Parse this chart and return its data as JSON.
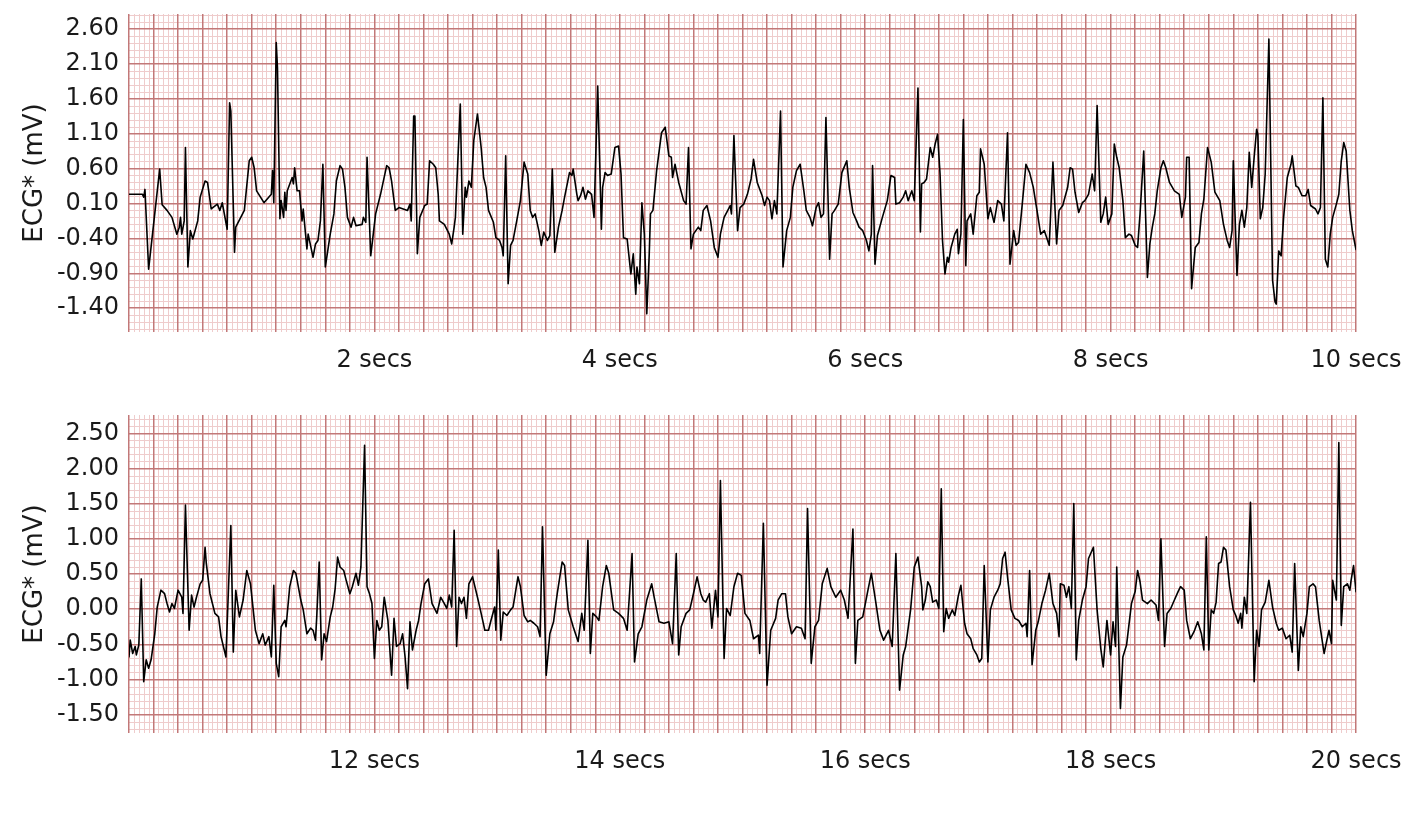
{
  "chart_data": [
    {
      "type": "line",
      "ylabel": "ECG* (mV)",
      "color": "#000000",
      "grid": true,
      "xlim": [
        0,
        10
      ],
      "ylim": [
        -1.74,
        2.81
      ],
      "xticks": [
        {
          "value": 0,
          "label": null
        },
        {
          "value": 0.2,
          "label": null
        },
        {
          "value": 0.4,
          "label": null
        },
        {
          "value": 0.6,
          "label": null
        },
        {
          "value": 0.8,
          "label": null
        },
        {
          "value": 1,
          "label": null
        },
        {
          "value": 1.2,
          "label": null
        },
        {
          "value": 1.4,
          "label": null
        },
        {
          "value": 1.6,
          "label": null
        },
        {
          "value": 1.8,
          "label": null
        },
        {
          "value": 2,
          "label": "2 secs"
        },
        {
          "value": 2.2,
          "label": null
        },
        {
          "value": 2.4,
          "label": null
        },
        {
          "value": 2.6,
          "label": null
        },
        {
          "value": 2.8,
          "label": null
        },
        {
          "value": 3,
          "label": null
        },
        {
          "value": 3.2,
          "label": null
        },
        {
          "value": 3.4,
          "label": null
        },
        {
          "value": 3.6,
          "label": null
        },
        {
          "value": 3.8,
          "label": null
        },
        {
          "value": 4,
          "label": "4 secs"
        },
        {
          "value": 4.2,
          "label": null
        },
        {
          "value": 4.4,
          "label": null
        },
        {
          "value": 4.6,
          "label": null
        },
        {
          "value": 4.8,
          "label": null
        },
        {
          "value": 5,
          "label": null
        },
        {
          "value": 5.2,
          "label": null
        },
        {
          "value": 5.4,
          "label": null
        },
        {
          "value": 5.6,
          "label": null
        },
        {
          "value": 5.8,
          "label": null
        },
        {
          "value": 6,
          "label": "6 secs"
        },
        {
          "value": 6.2,
          "label": null
        },
        {
          "value": 6.4,
          "label": null
        },
        {
          "value": 6.6,
          "label": null
        },
        {
          "value": 6.8,
          "label": null
        },
        {
          "value": 7,
          "label": null
        },
        {
          "value": 7.2,
          "label": null
        },
        {
          "value": 7.4,
          "label": null
        },
        {
          "value": 7.6,
          "label": null
        },
        {
          "value": 7.8,
          "label": null
        },
        {
          "value": 8,
          "label": "8 secs"
        },
        {
          "value": 8.2,
          "label": null
        },
        {
          "value": 8.4,
          "label": null
        },
        {
          "value": 8.6,
          "label": null
        },
        {
          "value": 8.8,
          "label": null
        },
        {
          "value": 9,
          "label": null
        },
        {
          "value": 9.2,
          "label": null
        },
        {
          "value": 9.4,
          "label": null
        },
        {
          "value": 9.6,
          "label": null
        },
        {
          "value": 9.8,
          "label": null
        },
        {
          "value": 10,
          "label": "10 secs"
        }
      ],
      "yticks": [
        {
          "value": 2.6,
          "label": "2.60"
        },
        {
          "value": 2.1,
          "label": "2.10"
        },
        {
          "value": 1.6,
          "label": "1.60"
        },
        {
          "value": 1.1,
          "label": "1.10"
        },
        {
          "value": 0.6,
          "label": "0.60"
        },
        {
          "value": 0.1,
          "label": "0.10"
        },
        {
          "value": -0.4,
          "label": "-0.40"
        },
        {
          "value": -0.9,
          "label": "-0.90"
        },
        {
          "value": -1.4,
          "label": "-1.40"
        }
      ],
      "x": [
        0,
        0.11,
        0.12,
        0.13,
        0.16,
        0.25,
        0.27,
        0.31,
        0.35,
        0.39,
        0.41,
        0.42,
        0.43,
        0.45,
        0.46,
        0.48,
        0.5,
        0.52,
        0.56,
        0.58,
        0.62,
        0.64,
        0.67,
        0.72,
        0.74,
        0.76,
        0.8,
        0.82,
        0.83,
        0.86,
        0.87,
        0.94,
        0.98,
        1,
        1.02,
        1.04,
        1.1,
        1.16,
        1.17,
        1.18,
        1.2,
        1.21,
        1.23,
        1.24,
        1.26,
        1.27,
        1.28,
        1.29,
        1.33,
        1.34,
        1.35,
        1.37,
        1.39,
        1.41,
        1.42,
        1.45,
        1.46,
        1.5,
        1.52,
        1.54,
        1.56,
        1.58,
        1.6,
        1.64,
        1.67,
        1.69,
        1.72,
        1.74,
        1.76,
        1.78,
        1.81,
        1.83,
        1.85,
        1.9,
        1.91,
        1.93,
        1.94,
        1.97,
        2.01,
        2.05,
        2.1,
        2.12,
        2.14,
        2.17,
        2.2,
        2.27,
        2.29,
        2.3,
        2.32,
        2.33,
        2.35,
        2.37,
        2.41,
        2.43,
        2.45,
        2.48,
        2.5,
        2.52,
        2.53,
        2.57,
        2.61,
        2.63,
        2.65,
        2.66,
        2.7,
        2.72,
        2.74,
        2.75,
        2.77,
        2.79,
        2.81,
        2.84,
        2.87,
        2.89,
        2.91,
        2.93,
        2.97,
        2.99,
        3.02,
        3.04,
        3.05,
        3.07,
        3.09,
        3.11,
        3.13,
        3.16,
        3.19,
        3.22,
        3.25,
        3.27,
        3.29,
        3.31,
        3.34,
        3.36,
        3.38,
        3.41,
        3.43,
        3.45,
        3.47,
        3.5,
        3.53,
        3.55,
        3.59,
        3.61,
        3.62,
        3.65,
        3.66,
        3.68,
        3.7,
        3.72,
        3.74,
        3.77,
        3.79,
        3.82,
        3.85,
        3.86,
        3.88,
        3.9,
        3.93,
        3.96,
        3.99,
        4.01,
        4.03,
        4.06,
        4.09,
        4.11,
        4.13,
        4.14,
        4.16,
        4.18,
        4.2,
        4.22,
        4.24,
        4.25,
        4.27,
        4.3,
        4.34,
        4.37,
        4.4,
        4.42,
        4.43,
        4.45,
        4.48,
        4.52,
        4.54,
        4.56,
        4.58,
        4.6,
        4.64,
        4.66,
        4.68,
        4.71,
        4.74,
        4.77,
        4.8,
        4.82,
        4.85,
        4.88,
        4.9,
        4.91,
        4.93,
        4.96,
        4.98,
        5.01,
        5.04,
        5.07,
        5.09,
        5.12,
        5.16,
        5.18,
        5.2,
        5.22,
        5.24,
        5.26,
        5.28,
        5.31,
        5.33,
        5.36,
        5.39,
        5.41,
        5.44,
        5.47,
        5.5,
        5.52,
        5.55,
        5.57,
        5.6,
        5.62,
        5.64,
        5.66,
        5.68,
        5.71,
        5.73,
        5.75,
        5.78,
        5.81,
        5.85,
        5.87,
        5.9,
        5.93,
        5.95,
        5.98,
        6.01,
        6.03,
        6.05,
        6.06,
        6.08,
        6.1,
        6.14,
        6.18,
        6.21,
        6.24,
        6.25,
        6.28,
        6.31,
        6.33,
        6.35,
        6.38,
        6.4,
        6.43,
        6.45,
        6.46,
        6.48,
        6.5,
        6.53,
        6.55,
        6.57,
        6.59,
        6.61,
        6.63,
        6.65,
        6.67,
        6.68,
        6.7,
        6.73,
        6.75,
        6.76,
        6.78,
        6.8,
        6.82,
        6.83,
        6.86,
        6.88,
        6.91,
        6.93,
        6.94,
        6.97,
        7,
        7.02,
        7.05,
        7.08,
        7.11,
        7.13,
        7.16,
        7.18,
        7.21,
        7.23,
        7.25,
        7.28,
        7.31,
        7.34,
        7.37,
        7.4,
        7.43,
        7.46,
        7.5,
        7.53,
        7.56,
        7.58,
        7.61,
        7.65,
        7.67,
        7.69,
        7.71,
        7.74,
        7.77,
        7.79,
        7.82,
        7.85,
        7.87,
        7.89,
        7.92,
        7.94,
        7.96,
        7.98,
        8.01,
        8.03,
        8.05,
        8.07,
        8.1,
        8.12,
        8.15,
        8.17,
        8.2,
        8.22,
        8.24,
        8.27,
        8.3,
        8.32,
        8.34,
        8.36,
        8.38,
        8.41,
        8.43,
        8.45,
        8.48,
        8.52,
        8.56,
        8.58,
        8.61,
        8.62,
        8.64,
        8.66,
        8.69,
        8.72,
        8.74,
        8.76,
        8.79,
        8.82,
        8.85,
        8.89,
        8.92,
        8.95,
        8.97,
        8.99,
        9,
        9.03,
        9.05,
        9.07,
        9.09,
        9.11,
        9.13,
        9.15,
        9.17,
        9.19,
        9.2,
        9.22,
        9.24,
        9.26,
        9.29,
        9.32,
        9.34,
        9.35,
        9.37,
        9.39,
        9.41,
        9.44,
        9.47,
        9.48,
        9.51,
        9.53,
        9.56,
        9.59,
        9.61,
        9.63,
        9.67,
        9.69,
        9.71,
        9.73,
        9.75,
        9.77,
        9.79,
        9.81,
        9.84,
        9.86,
        9.88,
        9.9,
        9.92,
        9.95,
        9.97,
        10
      ],
      "values": [
        0.23,
        0.23,
        0.19,
        0.3,
        -0.84,
        0.59,
        0.08,
        0.0,
        -0.1,
        -0.34,
        -0.24,
        -0.1,
        -0.34,
        -0.15,
        0.9,
        -0.81,
        -0.29,
        -0.41,
        -0.15,
        0.19,
        0.42,
        0.4,
        0.02,
        0.09,
        0.0,
        0.11,
        -0.27,
        1.54,
        1.42,
        -0.6,
        -0.24,
        0.0,
        0.71,
        0.76,
        0.61,
        0.28,
        0.11,
        0.23,
        0.57,
        0.11,
        2.4,
        2.04,
        -0.12,
        0.14,
        -0.1,
        0.26,
        0.0,
        0.28,
        0.47,
        0.38,
        0.61,
        0.28,
        0.28,
        -0.15,
        0.02,
        -0.55,
        -0.34,
        -0.67,
        -0.48,
        -0.43,
        -0.15,
        0.66,
        -0.81,
        -0.34,
        -0.05,
        0.42,
        0.64,
        0.59,
        0.33,
        -0.1,
        -0.24,
        -0.1,
        -0.22,
        -0.2,
        -0.1,
        -0.17,
        0.76,
        -0.65,
        -0.05,
        0.23,
        0.64,
        0.61,
        0.42,
        0.0,
        0.04,
        0.0,
        0.09,
        -0.15,
        1.35,
        1.35,
        -0.62,
        -0.1,
        0.07,
        0.09,
        0.71,
        0.66,
        0.61,
        0.23,
        -0.15,
        -0.2,
        -0.34,
        -0.48,
        -0.24,
        -0.1,
        1.52,
        -0.34,
        0.33,
        0.19,
        0.42,
        0.33,
        1.0,
        1.38,
        0.9,
        0.47,
        0.33,
        0.0,
        -0.17,
        -0.39,
        -0.43,
        -0.53,
        -0.65,
        0.78,
        -1.05,
        -0.5,
        -0.43,
        -0.15,
        0.14,
        0.69,
        0.52,
        0.0,
        -0.1,
        -0.05,
        -0.29,
        -0.5,
        -0.31,
        -0.43,
        -0.36,
        0.59,
        -0.6,
        -0.24,
        0.0,
        0.19,
        0.54,
        0.5,
        0.59,
        0.23,
        0.14,
        0.21,
        0.33,
        0.16,
        0.28,
        0.23,
        -0.1,
        1.78,
        -0.27,
        0.33,
        0.54,
        0.5,
        0.52,
        0.9,
        0.92,
        0.52,
        -0.39,
        -0.41,
        -0.91,
        -0.62,
        -1.2,
        -0.81,
        -1.05,
        0.11,
        -0.34,
        -1.48,
        -0.62,
        -0.05,
        0.0,
        0.57,
        1.11,
        1.19,
        0.78,
        0.76,
        0.47,
        0.66,
        0.4,
        0.14,
        0.09,
        0.9,
        -0.55,
        -0.34,
        -0.24,
        -0.29,
        0.0,
        0.07,
        -0.15,
        -0.53,
        -0.67,
        -0.34,
        -0.1,
        0.0,
        0.07,
        -0.05,
        1.07,
        -0.29,
        0.04,
        0.09,
        0.23,
        0.45,
        0.73,
        0.4,
        0.21,
        0.07,
        0.19,
        0.14,
        -0.12,
        0.14,
        -0.05,
        1.42,
        -0.81,
        -0.29,
        -0.1,
        0.33,
        0.57,
        0.66,
        0.28,
        0.0,
        -0.1,
        -0.22,
        0.04,
        0.11,
        -0.1,
        -0.05,
        1.33,
        -0.7,
        -0.05,
        0.0,
        0.09,
        0.54,
        0.71,
        0.33,
        -0.03,
        -0.15,
        -0.24,
        -0.29,
        -0.43,
        -0.58,
        -0.34,
        0.64,
        -0.77,
        -0.36,
        -0.1,
        0.14,
        0.5,
        0.47,
        0.09,
        0.11,
        0.19,
        0.28,
        0.14,
        0.28,
        0.14,
        1.75,
        -0.31,
        0.38,
        0.4,
        0.45,
        0.9,
        0.76,
        0.95,
        1.09,
        0.52,
        -0.43,
        -0.91,
        -0.67,
        -0.74,
        -0.53,
        -0.34,
        -0.27,
        -0.62,
        -0.34,
        1.3,
        -0.79,
        -0.15,
        -0.05,
        -0.34,
        0.21,
        0.26,
        0.88,
        0.66,
        -0.12,
        0.04,
        -0.17,
        0.14,
        0.09,
        -0.15,
        1.11,
        -0.77,
        -0.29,
        -0.5,
        -0.46,
        0.09,
        0.66,
        0.54,
        0.33,
        0.0,
        -0.34,
        -0.29,
        -0.5,
        0.69,
        -0.48,
        0.0,
        0.07,
        0.33,
        0.61,
        0.59,
        0.26,
        -0.03,
        0.11,
        0.14,
        0.23,
        0.52,
        0.28,
        1.5,
        -0.17,
        -0.05,
        0.19,
        -0.2,
        -0.05,
        0.95,
        0.76,
        0.61,
        0.14,
        -0.39,
        -0.34,
        -0.36,
        -0.5,
        -0.53,
        -0.05,
        0.85,
        -0.96,
        -0.48,
        -0.24,
        -0.05,
        0.28,
        0.61,
        0.71,
        0.61,
        0.4,
        0.28,
        0.23,
        -0.1,
        0.19,
        0.76,
        0.76,
        -1.12,
        -0.53,
        -0.46,
        -0.05,
        0.16,
        0.9,
        0.69,
        0.26,
        0.14,
        -0.2,
        -0.43,
        -0.53,
        -0.29,
        0.71,
        -0.93,
        -0.2,
        0.0,
        -0.24,
        0.04,
        0.83,
        0.33,
        0.76,
        1.16,
        1.09,
        -0.12,
        0.04,
        0.52,
        2.45,
        -1.0,
        -1.31,
        -1.34,
        -0.58,
        -0.65,
        -0.1,
        0.47,
        0.66,
        0.78,
        0.35,
        0.33,
        0.21,
        0.21,
        0.3,
        0.07,
        0.02,
        -0.05,
        0.04,
        1.61,
        -0.7,
        -0.81,
        -0.34,
        -0.1,
        0.09,
        0.23,
        0.71,
        0.97,
        0.85,
        0.0,
        -0.29,
        -0.56
      ]
    },
    {
      "type": "line",
      "ylabel": "ECG* (mV)",
      "color": "#000000",
      "grid": true,
      "xlim": [
        10,
        20
      ],
      "ylim": [
        -1.76,
        2.76
      ],
      "xticks": [
        {
          "value": 10,
          "label": null
        },
        {
          "value": 10.2,
          "label": null
        },
        {
          "value": 10.4,
          "label": null
        },
        {
          "value": 10.6,
          "label": null
        },
        {
          "value": 10.8,
          "label": null
        },
        {
          "value": 11,
          "label": null
        },
        {
          "value": 11.2,
          "label": null
        },
        {
          "value": 11.4,
          "label": null
        },
        {
          "value": 11.6,
          "label": null
        },
        {
          "value": 11.8,
          "label": null
        },
        {
          "value": 12,
          "label": "12 secs"
        },
        {
          "value": 12.2,
          "label": null
        },
        {
          "value": 12.4,
          "label": null
        },
        {
          "value": 12.6,
          "label": null
        },
        {
          "value": 12.8,
          "label": null
        },
        {
          "value": 13,
          "label": null
        },
        {
          "value": 13.2,
          "label": null
        },
        {
          "value": 13.4,
          "label": null
        },
        {
          "value": 13.6,
          "label": null
        },
        {
          "value": 13.8,
          "label": null
        },
        {
          "value": 14,
          "label": "14 secs"
        },
        {
          "value": 14.2,
          "label": null
        },
        {
          "value": 14.4,
          "label": null
        },
        {
          "value": 14.6,
          "label": null
        },
        {
          "value": 14.8,
          "label": null
        },
        {
          "value": 15,
          "label": null
        },
        {
          "value": 15.2,
          "label": null
        },
        {
          "value": 15.4,
          "label": null
        },
        {
          "value": 15.6,
          "label": null
        },
        {
          "value": 15.8,
          "label": null
        },
        {
          "value": 16,
          "label": "16 secs"
        },
        {
          "value": 16.2,
          "label": null
        },
        {
          "value": 16.4,
          "label": null
        },
        {
          "value": 16.6,
          "label": null
        },
        {
          "value": 16.8,
          "label": null
        },
        {
          "value": 17,
          "label": null
        },
        {
          "value": 17.2,
          "label": null
        },
        {
          "value": 17.4,
          "label": null
        },
        {
          "value": 17.6,
          "label": null
        },
        {
          "value": 17.8,
          "label": null
        },
        {
          "value": 18,
          "label": "18 secs"
        },
        {
          "value": 18.2,
          "label": null
        },
        {
          "value": 18.4,
          "label": null
        },
        {
          "value": 18.6,
          "label": null
        },
        {
          "value": 18.8,
          "label": null
        },
        {
          "value": 19,
          "label": null
        },
        {
          "value": 19.2,
          "label": null
        },
        {
          "value": 19.4,
          "label": null
        },
        {
          "value": 19.6,
          "label": null
        },
        {
          "value": 19.8,
          "label": null
        },
        {
          "value": 20,
          "label": "20 secs"
        }
      ],
      "yticks": [
        {
          "value": 2.5,
          "label": "2.50"
        },
        {
          "value": 2,
          "label": "2.00"
        },
        {
          "value": 1.5,
          "label": "1.50"
        },
        {
          "value": 1,
          "label": "1.00"
        },
        {
          "value": 0.5,
          "label": "0.50"
        },
        {
          "value": 0,
          "label": "0.00"
        },
        {
          "value": -0.5,
          "label": "-0.50"
        },
        {
          "value": -1,
          "label": "-1.00"
        },
        {
          "value": -1.5,
          "label": "-1.50"
        }
      ],
      "x": [
        10,
        10.01,
        10.03,
        10.05,
        10.06,
        10.08,
        10.1,
        10.12,
        10.14,
        10.16,
        10.18,
        10.21,
        10.23,
        10.26,
        10.29,
        10.31,
        10.33,
        10.35,
        10.37,
        10.4,
        10.43,
        10.44,
        10.46,
        10.49,
        10.51,
        10.53,
        10.55,
        10.58,
        10.6,
        10.62,
        10.63,
        10.66,
        10.7,
        10.73,
        10.75,
        10.79,
        10.83,
        10.85,
        10.87,
        10.9,
        10.93,
        10.96,
        10.99,
        11.03,
        11.06,
        11.09,
        11.11,
        11.14,
        11.16,
        11.18,
        11.2,
        11.22,
        11.24,
        11.27,
        11.28,
        11.31,
        11.34,
        11.36,
        11.4,
        11.42,
        11.45,
        11.48,
        11.5,
        11.52,
        11.53,
        11.55,
        11.57,
        11.59,
        11.61,
        11.64,
        11.66,
        11.68,
        11.7,
        11.72,
        11.75,
        11.77,
        11.8,
        11.82,
        11.85,
        11.87,
        11.89,
        11.92,
        11.94,
        11.96,
        11.98,
        12,
        12.02,
        12.04,
        12.06,
        12.08,
        12.11,
        12.14,
        12.16,
        12.18,
        12.21,
        12.23,
        12.25,
        12.27,
        12.29,
        12.31,
        12.34,
        12.36,
        12.38,
        12.41,
        12.44,
        12.47,
        12.51,
        12.54,
        12.57,
        12.59,
        12.61,
        12.63,
        12.65,
        12.67,
        12.69,
        12.71,
        12.73,
        12.75,
        12.77,
        12.8,
        12.84,
        12.87,
        12.9,
        12.93,
        12.95,
        12.98,
        12.99,
        13.01,
        13.03,
        13.05,
        13.08,
        13.11,
        13.13,
        13.17,
        13.19,
        13.22,
        13.25,
        13.27,
        13.3,
        13.33,
        13.35,
        13.37,
        13.4,
        13.43,
        13.46,
        13.49,
        13.53,
        13.55,
        13.58,
        13.62,
        13.66,
        13.69,
        13.71,
        13.74,
        13.76,
        13.78,
        13.81,
        13.83,
        13.86,
        13.89,
        13.91,
        13.95,
        13.99,
        14.03,
        14.06,
        14.1,
        14.12,
        14.15,
        14.18,
        14.22,
        14.26,
        14.28,
        14.32,
        14.36,
        14.4,
        14.43,
        14.46,
        14.48,
        14.5,
        14.54,
        14.57,
        14.6,
        14.63,
        14.66,
        14.68,
        14.7,
        14.73,
        14.75,
        14.78,
        14.8,
        14.82,
        14.85,
        14.87,
        14.9,
        14.93,
        14.96,
        14.99,
        15.02,
        15.06,
        15.09,
        15.13,
        15.14,
        15.17,
        15.2,
        15.23,
        15.27,
        15.29,
        15.32,
        15.35,
        15.37,
        15.4,
        15.44,
        15.48,
        15.51,
        15.53,
        15.56,
        15.59,
        15.62,
        15.65,
        15.69,
        15.72,
        15.76,
        15.8,
        15.83,
        15.86,
        15.9,
        15.92,
        15.94,
        15.98,
        16.02,
        16.05,
        16.08,
        16.12,
        16.15,
        16.19,
        16.22,
        16.25,
        16.28,
        16.31,
        16.33,
        16.37,
        16.4,
        16.43,
        16.46,
        16.47,
        16.49,
        16.51,
        16.53,
        16.55,
        16.58,
        16.6,
        16.62,
        16.64,
        16.66,
        16.68,
        16.71,
        16.73,
        16.76,
        16.78,
        16.81,
        16.83,
        16.86,
        16.88,
        16.91,
        16.93,
        16.95,
        16.97,
        17,
        17.02,
        17.05,
        17.08,
        17.1,
        17.12,
        17.14,
        17.16,
        17.19,
        17.22,
        17.25,
        17.28,
        17.31,
        17.32,
        17.34,
        17.36,
        17.39,
        17.41,
        17.44,
        17.47,
        17.5,
        17.53,
        17.56,
        17.58,
        17.59,
        17.62,
        17.64,
        17.66,
        17.68,
        17.7,
        17.72,
        17.74,
        17.77,
        17.8,
        17.82,
        17.86,
        17.89,
        17.92,
        17.94,
        17.97,
        18,
        18.02,
        18.04,
        18.05,
        18.08,
        18.1,
        18.13,
        18.17,
        18.2,
        18.22,
        18.24,
        18.26,
        18.3,
        18.33,
        18.37,
        18.39,
        18.41,
        18.44,
        18.46,
        18.49,
        18.52,
        18.55,
        18.57,
        18.6,
        18.62,
        18.65,
        18.68,
        18.71,
        18.74,
        18.76,
        18.78,
        18.8,
        18.82,
        18.84,
        18.86,
        18.88,
        18.9,
        18.92,
        18.94,
        18.97,
        19,
        19.02,
        19.04,
        19.06,
        19.07,
        19.09,
        19.11,
        19.14,
        19.17,
        19.19,
        19.21,
        19.23,
        19.26,
        19.29,
        19.32,
        19.35,
        19.37,
        19.4,
        19.43,
        19.46,
        19.48,
        19.5,
        19.53,
        19.55,
        19.57,
        19.6,
        19.62,
        19.65,
        19.67,
        19.7,
        19.74,
        19.76,
        19.78,
        19.8,
        19.81,
        19.84,
        19.86,
        19.88,
        19.9,
        19.93,
        19.95,
        19.96,
        19.98,
        20
      ],
      "values": [
        -0.68,
        -0.44,
        -0.63,
        -0.53,
        -0.65,
        -0.51,
        0.43,
        -1.03,
        -0.72,
        -0.84,
        -0.72,
        -0.35,
        0.03,
        0.27,
        0.22,
        0.08,
        -0.04,
        0.08,
        0.01,
        0.27,
        0.17,
        -0.06,
        1.48,
        -0.3,
        0.2,
        0.03,
        0.17,
        0.36,
        0.41,
        0.88,
        0.65,
        0.22,
        -0.06,
        -0.11,
        -0.39,
        -0.68,
        1.19,
        -0.61,
        0.27,
        -0.11,
        0.13,
        0.55,
        0.36,
        -0.3,
        -0.49,
        -0.35,
        -0.51,
        -0.39,
        -0.68,
        0.34,
        -0.77,
        -0.96,
        -0.25,
        -0.16,
        -0.25,
        0.32,
        0.55,
        0.51,
        0.13,
        -0.01,
        -0.35,
        -0.27,
        -0.3,
        -0.44,
        -0.11,
        0.67,
        -0.72,
        -0.35,
        -0.46,
        -0.11,
        0.03,
        0.29,
        0.74,
        0.6,
        0.55,
        0.41,
        0.22,
        0.32,
        0.51,
        0.34,
        0.6,
        2.33,
        0.32,
        0.22,
        0.08,
        -0.7,
        -0.16,
        -0.3,
        -0.25,
        0.17,
        -0.16,
        -0.94,
        -0.13,
        -0.53,
        -0.49,
        -0.35,
        -0.68,
        -1.13,
        -0.18,
        -0.58,
        -0.3,
        -0.16,
        0.08,
        0.36,
        0.43,
        0.08,
        -0.06,
        0.17,
        0.08,
        0.01,
        0.2,
        0.03,
        1.12,
        -0.53,
        0.17,
        0.08,
        0.17,
        -0.13,
        0.36,
        0.46,
        0.17,
        -0.06,
        -0.3,
        -0.3,
        -0.16,
        0.03,
        -0.3,
        0.84,
        -0.44,
        -0.04,
        -0.09,
        -0.01,
        0.03,
        0.46,
        0.32,
        -0.09,
        -0.18,
        -0.16,
        -0.2,
        -0.25,
        -0.39,
        1.17,
        -0.94,
        -0.35,
        -0.18,
        0.22,
        0.67,
        0.62,
        -0.01,
        -0.25,
        -0.46,
        -0.06,
        -0.3,
        0.98,
        -0.63,
        -0.06,
        -0.11,
        -0.16,
        0.32,
        0.62,
        0.51,
        -0.01,
        -0.06,
        -0.13,
        -0.3,
        0.79,
        -0.75,
        -0.35,
        -0.25,
        0.13,
        0.36,
        0.17,
        -0.18,
        -0.2,
        -0.18,
        -0.49,
        0.79,
        -0.65,
        -0.25,
        -0.06,
        -0.01,
        0.22,
        0.46,
        0.22,
        0.13,
        0.1,
        0.22,
        -0.27,
        0.27,
        -0.11,
        1.83,
        -0.7,
        0.01,
        -0.09,
        0.32,
        0.51,
        0.48,
        -0.06,
        -0.16,
        -0.42,
        -0.37,
        -0.63,
        1.22,
        -1.08,
        -0.3,
        -0.13,
        0.13,
        0.22,
        0.22,
        -0.11,
        -0.35,
        -0.25,
        -0.27,
        -0.42,
        1.43,
        -0.77,
        -0.25,
        -0.16,
        0.36,
        0.58,
        0.32,
        0.17,
        0.27,
        0.13,
        -0.13,
        1.14,
        -0.77,
        -0.16,
        -0.11,
        0.25,
        0.51,
        0.17,
        -0.3,
        -0.44,
        -0.3,
        -0.53,
        0.79,
        -1.15,
        -0.65,
        -0.53,
        -0.01,
        0.6,
        0.74,
        0.32,
        -0.01,
        0.13,
        0.39,
        0.32,
        0.1,
        0.13,
        0.01,
        1.71,
        -0.32,
        0.01,
        -0.13,
        -0.01,
        -0.09,
        0.2,
        0.34,
        -0.2,
        -0.35,
        -0.42,
        -0.56,
        -0.65,
        -0.75,
        -0.7,
        0.62,
        -0.75,
        -0.01,
        0.17,
        0.27,
        0.36,
        0.72,
        0.81,
        0.46,
        -0.01,
        -0.13,
        -0.16,
        -0.25,
        -0.2,
        -0.39,
        0.55,
        -0.79,
        -0.3,
        -0.18,
        0.08,
        0.27,
        0.51,
        0.08,
        -0.06,
        -0.39,
        0.36,
        0.34,
        0.17,
        0.32,
        0.01,
        1.5,
        -0.72,
        -0.16,
        0.13,
        0.32,
        0.72,
        0.88,
        -0.01,
        -0.56,
        -0.82,
        -0.16,
        -0.65,
        -0.18,
        -0.53,
        0.6,
        -1.41,
        -0.68,
        -0.51,
        0.08,
        0.25,
        0.55,
        0.39,
        0.13,
        0.08,
        0.13,
        0.06,
        -0.16,
        1.0,
        -0.53,
        -0.06,
        0.01,
        0.13,
        0.25,
        0.32,
        0.27,
        -0.16,
        -0.42,
        -0.32,
        -0.18,
        -0.35,
        -0.58,
        1.03,
        -0.58,
        -0.01,
        -0.06,
        0.1,
        0.65,
        0.67,
        0.88,
        0.84,
        0.32,
        -0.01,
        -0.09,
        -0.2,
        -0.06,
        -0.27,
        0.17,
        -0.06,
        1.52,
        -1.03,
        -0.3,
        -0.53,
        -0.01,
        0.1,
        0.41,
        0.03,
        -0.2,
        -0.3,
        -0.27,
        -0.42,
        -0.37,
        -0.61,
        0.65,
        -0.87,
        -0.25,
        -0.39,
        -0.06,
        0.32,
        0.36,
        0.32,
        -0.16,
        -0.63,
        -0.46,
        -0.3,
        -0.49,
        0.41,
        0.13,
        2.37,
        -0.23,
        0.32,
        0.36,
        0.27,
        0.41,
        0.62,
        0.25
      ]
    }
  ]
}
